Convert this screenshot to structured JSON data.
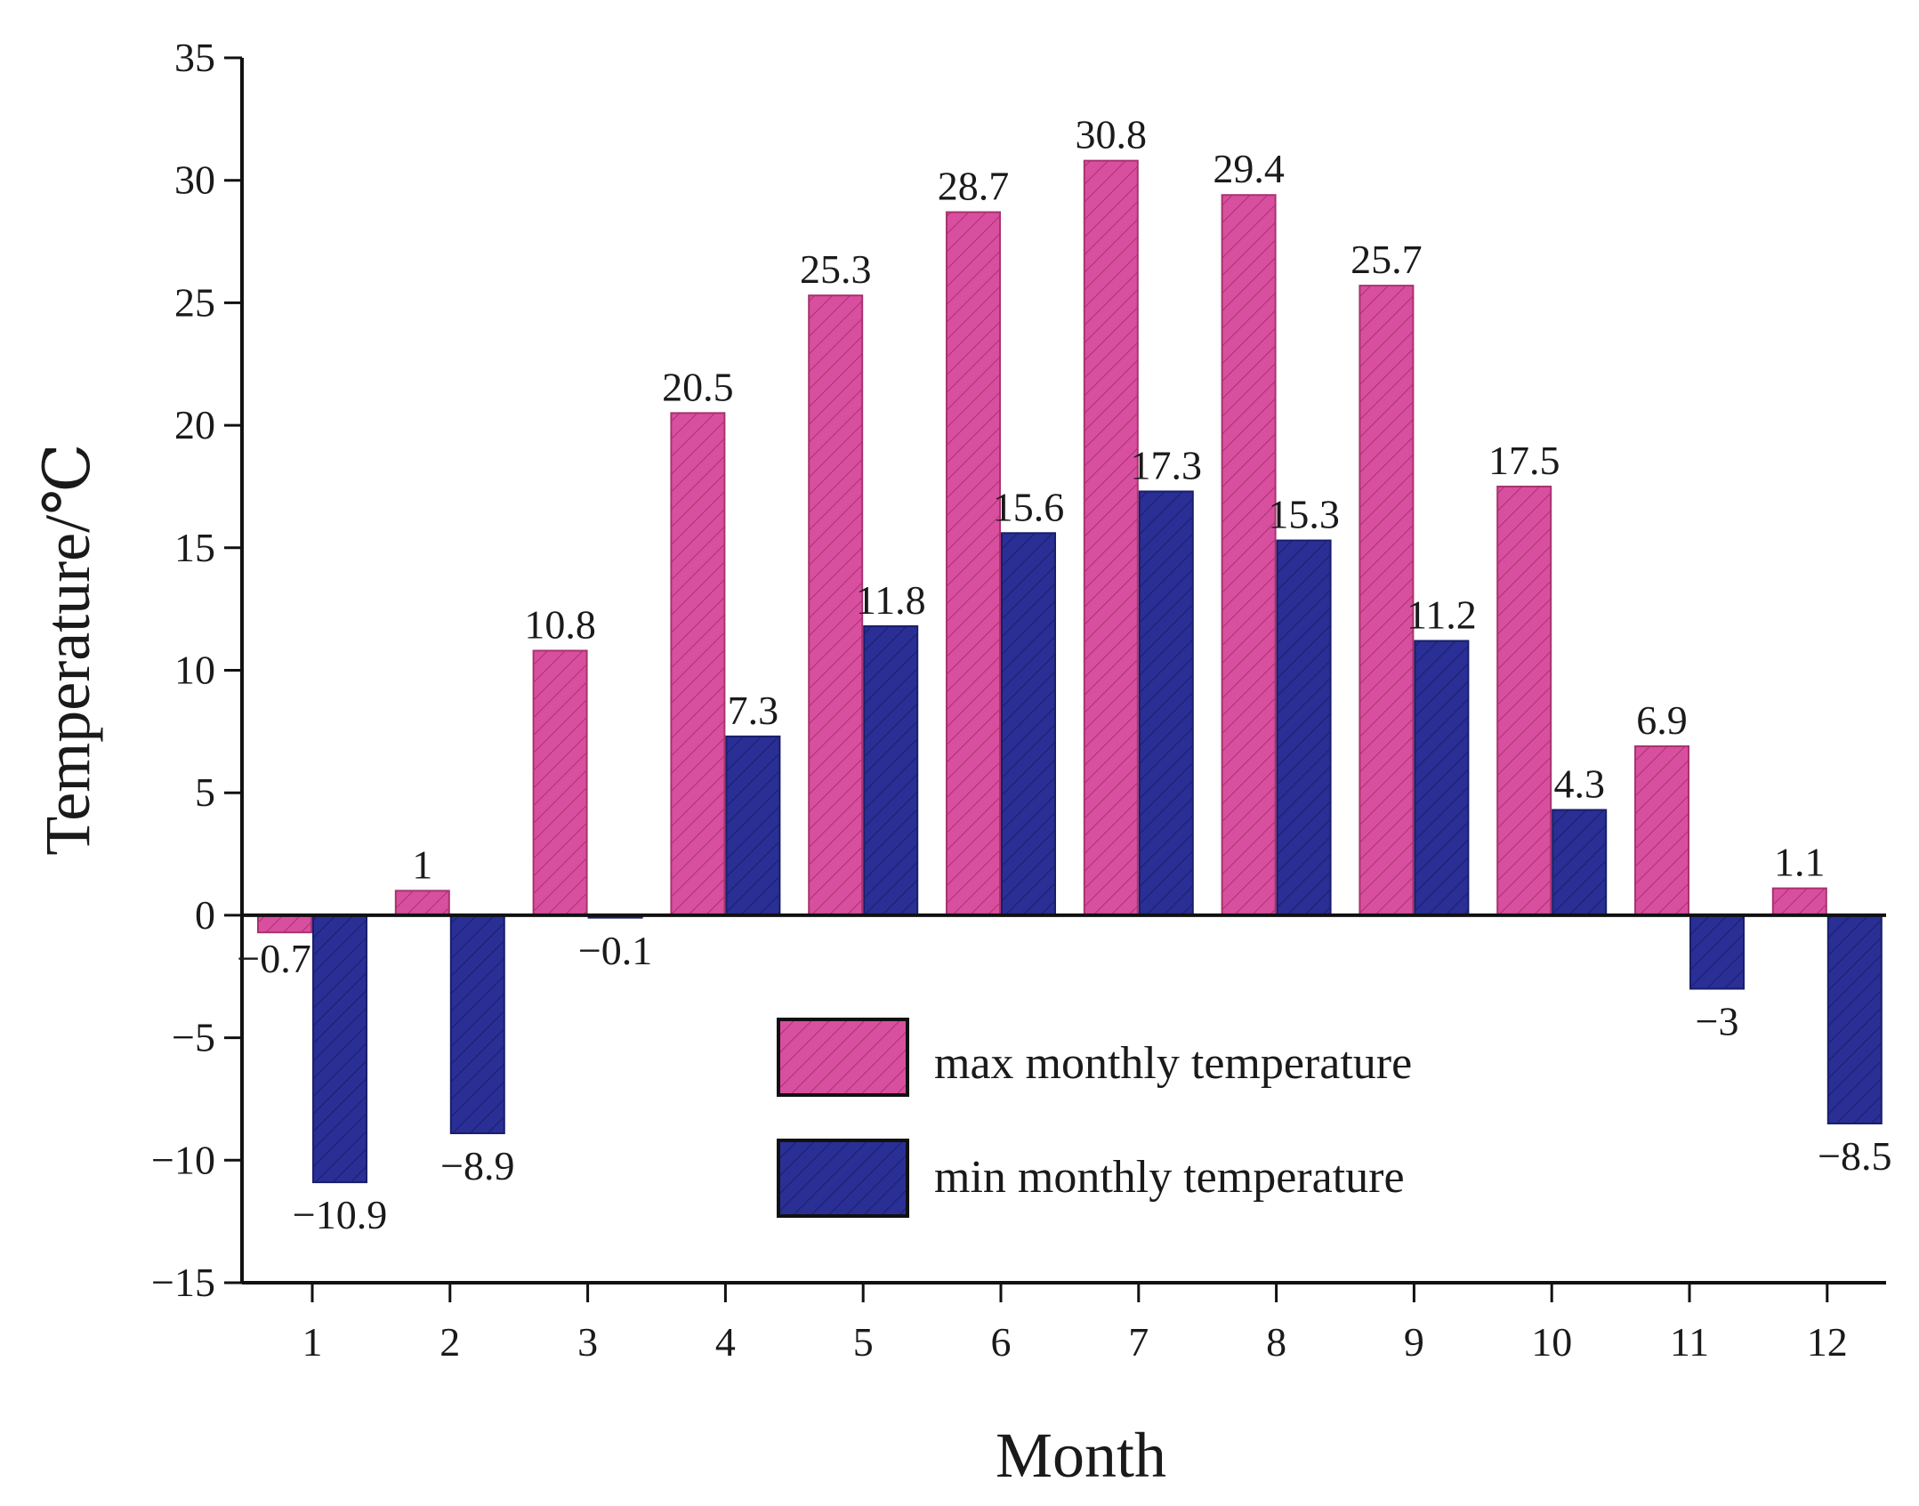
{
  "chart_data": {
    "type": "bar",
    "title": "",
    "xlabel": "Month",
    "ylabel": "Temperature/℃",
    "ylim": [
      -15,
      35
    ],
    "yticks": [
      -15,
      -10,
      -5,
      0,
      5,
      10,
      15,
      20,
      25,
      30,
      35
    ],
    "ytick_labels": [
      "−15",
      "−10",
      "−5",
      "0",
      "5",
      "10",
      "15",
      "20",
      "25",
      "30",
      "35"
    ],
    "categories": [
      "1",
      "2",
      "3",
      "4",
      "5",
      "6",
      "7",
      "8",
      "9",
      "10",
      "11",
      "12"
    ],
    "grid": false,
    "legend_position": "center-right",
    "series": [
      {
        "name": "max monthly temperature",
        "color": "#d94f9f",
        "pattern": "hatch",
        "values": [
          -0.7,
          1,
          10.8,
          20.5,
          25.3,
          28.7,
          30.8,
          29.4,
          25.7,
          17.5,
          6.9,
          1.1
        ],
        "labels": [
          "−0.7",
          "1",
          "10.8",
          "20.5",
          "25.3",
          "28.7",
          "30.8",
          "29.4",
          "25.7",
          "17.5",
          "6.9",
          "1.1"
        ]
      },
      {
        "name": "min monthly temperature",
        "color": "#2a2f96",
        "pattern": "hatch",
        "values": [
          -10.9,
          -8.9,
          -0.1,
          7.3,
          11.8,
          15.6,
          17.3,
          15.3,
          11.2,
          4.3,
          -3,
          -8.5
        ],
        "labels": [
          "−10.9",
          "−8.9",
          "−0.1",
          "7.3",
          "11.8",
          "15.6",
          "17.3",
          "15.3",
          "11.2",
          "4.3",
          "−3",
          "−8.5"
        ]
      }
    ]
  }
}
